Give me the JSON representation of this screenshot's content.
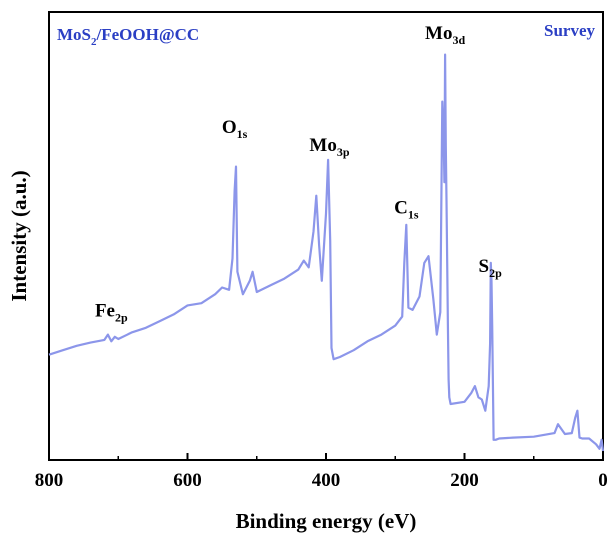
{
  "chart_data": {
    "type": "line",
    "title": "",
    "sample_label": {
      "main": "MoS",
      "sub": "2",
      "rest": "/FeOOH@CC"
    },
    "mode_label": "Survey",
    "xlabel": "Binding energy (eV)",
    "ylabel": "Intensity (a.u.)",
    "xlim": [
      800,
      0
    ],
    "x_reversed": true,
    "ylim": [
      0,
      100
    ],
    "y_ticks_visible": false,
    "xticks": [
      800,
      600,
      400,
      200,
      0
    ],
    "xtick_labels": [
      "800",
      "600",
      "400",
      "200",
      "0"
    ],
    "grid": false,
    "series": [
      {
        "name": "",
        "color": "#8c96ea",
        "x": [
          800,
          780,
          760,
          740,
          720,
          715,
          710,
          705,
          700,
          680,
          660,
          640,
          620,
          600,
          580,
          560,
          550,
          540,
          535,
          532,
          530,
          528,
          520,
          510,
          506,
          500,
          480,
          460,
          440,
          432,
          425,
          418,
          414,
          410,
          406,
          400,
          397,
          394,
          392,
          389,
          380,
          360,
          340,
          320,
          300,
          290,
          287,
          284,
          281,
          275,
          265,
          258,
          252,
          245,
          240,
          235,
          232,
          230,
          229,
          228,
          227,
          226,
          225,
          224,
          223,
          222,
          220,
          200,
          190,
          185,
          180,
          175,
          170,
          165,
          163,
          162,
          161,
          160,
          158,
          155,
          150,
          130,
          100,
          70,
          65,
          55,
          45,
          40,
          37,
          34,
          30,
          20,
          10,
          5,
          2,
          0
        ],
        "y": [
          23.5,
          24.5,
          25.5,
          26.2,
          26.8,
          28.0,
          26.5,
          27.5,
          27.0,
          28.5,
          29.5,
          31.0,
          32.5,
          34.5,
          35.0,
          37.0,
          38.5,
          38.0,
          45.0,
          60.0,
          65.5,
          42.0,
          37.0,
          40.0,
          42.0,
          37.5,
          39.0,
          40.5,
          42.5,
          44.5,
          43.0,
          51.0,
          59.0,
          48.0,
          40.0,
          55.0,
          67.0,
          49.0,
          25.0,
          22.5,
          23.0,
          24.5,
          26.5,
          28.0,
          30.0,
          32.0,
          44.0,
          52.5,
          34.0,
          33.5,
          36.5,
          44.0,
          45.5,
          36.0,
          28.0,
          33.0,
          80.0,
          72.0,
          62.0,
          90.5,
          70.0,
          58.0,
          44.0,
          30.0,
          18.0,
          14.0,
          12.5,
          13.0,
          15.0,
          16.5,
          14.0,
          13.5,
          11.0,
          16.5,
          26.0,
          44.0,
          40.0,
          30.0,
          4.5,
          4.5,
          4.8,
          5.0,
          5.2,
          6.0,
          8.0,
          5.8,
          6.0,
          9.5,
          11.0,
          5.0,
          4.8,
          4.8,
          3.5,
          2.5,
          4.5,
          2.0
        ]
      }
    ],
    "annotations": [
      {
        "main": "Fe",
        "sub": "2p",
        "x": 710,
        "y": 32
      },
      {
        "main": "O",
        "sub": "1s",
        "x": 532,
        "y": 73
      },
      {
        "main": "Mo",
        "sub": "3p",
        "x": 395,
        "y": 69
      },
      {
        "main": "C",
        "sub": "1s",
        "x": 284,
        "y": 55
      },
      {
        "main": "Mo",
        "sub": "3d",
        "x": 228,
        "y": 94
      },
      {
        "main": "S",
        "sub": "2p",
        "x": 163,
        "y": 42
      }
    ]
  }
}
